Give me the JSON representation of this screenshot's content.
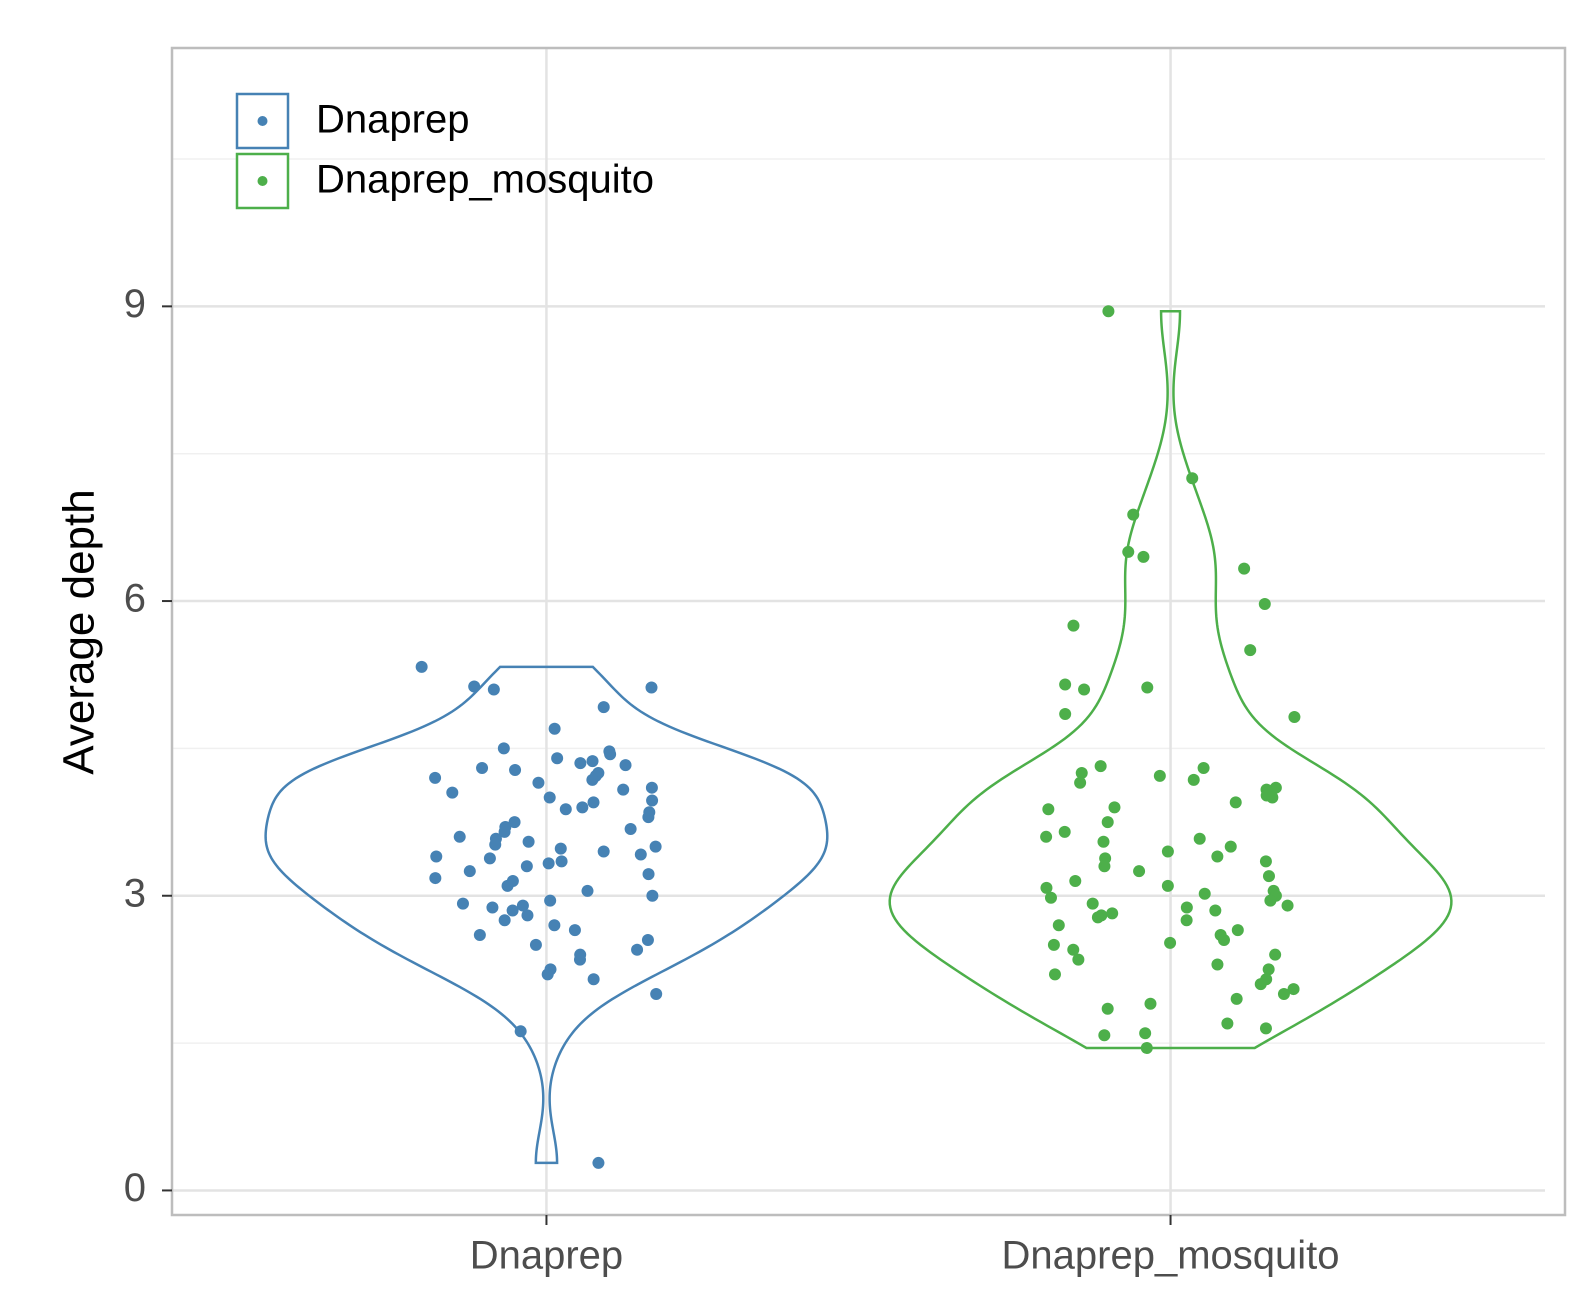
{
  "chart_data": {
    "type": "violin",
    "y_label": "Average depth",
    "categories": [
      "Dnaprep",
      "Dnaprep_mosquito"
    ],
    "series": [
      {
        "name": "Dnaprep",
        "color": "#4682b4",
        "values": [
          5.33,
          5.12,
          5.1,
          5.13,
          4.92,
          4.7,
          4.5,
          4.47,
          4.44,
          4.4,
          4.37,
          4.35,
          4.33,
          4.3,
          4.28,
          4.25,
          4.22,
          4.2,
          4.18,
          4.15,
          4.1,
          4.08,
          4.05,
          4.0,
          3.97,
          3.95,
          3.9,
          3.88,
          3.85,
          3.8,
          3.75,
          3.7,
          3.68,
          3.65,
          3.6,
          3.58,
          3.55,
          3.52,
          3.5,
          3.48,
          3.45,
          3.42,
          3.4,
          3.38,
          3.35,
          3.33,
          3.3,
          3.25,
          3.22,
          3.18,
          3.15,
          3.1,
          3.05,
          3.0,
          2.95,
          2.92,
          2.9,
          2.88,
          2.85,
          2.8,
          2.75,
          2.7,
          2.65,
          2.6,
          2.55,
          2.5,
          2.45,
          2.4,
          2.35,
          2.25,
          2.2,
          2.15,
          2.0,
          1.62,
          0.28
        ]
      },
      {
        "name": "Dnaprep_mosquito",
        "color": "#4daf4a",
        "values": [
          8.95,
          7.25,
          6.88,
          6.5,
          6.45,
          6.33,
          5.97,
          5.75,
          5.5,
          5.15,
          5.12,
          5.1,
          4.85,
          4.82,
          4.32,
          4.3,
          4.25,
          4.22,
          4.18,
          4.15,
          4.1,
          4.08,
          4.05,
          4.02,
          4.0,
          3.95,
          3.9,
          3.88,
          3.75,
          3.65,
          3.6,
          3.58,
          3.55,
          3.5,
          3.45,
          3.4,
          3.38,
          3.35,
          3.3,
          3.25,
          3.2,
          3.15,
          3.1,
          3.08,
          3.05,
          3.02,
          3.0,
          2.98,
          2.95,
          2.92,
          2.9,
          2.88,
          2.85,
          2.82,
          2.8,
          2.78,
          2.75,
          2.7,
          2.65,
          2.6,
          2.55,
          2.52,
          2.5,
          2.45,
          2.4,
          2.35,
          2.3,
          2.25,
          2.2,
          2.15,
          2.1,
          2.05,
          2.0,
          1.95,
          1.9,
          1.85,
          1.7,
          1.65,
          1.6,
          1.58,
          1.45
        ]
      }
    ],
    "ylim": [
      -0.25,
      11.63
    ],
    "yticks": [
      0,
      3,
      6,
      9
    ],
    "minor_yticks": [
      1.5,
      4.5,
      7.5,
      10.5
    ],
    "grid": true,
    "legend": "top-left"
  }
}
